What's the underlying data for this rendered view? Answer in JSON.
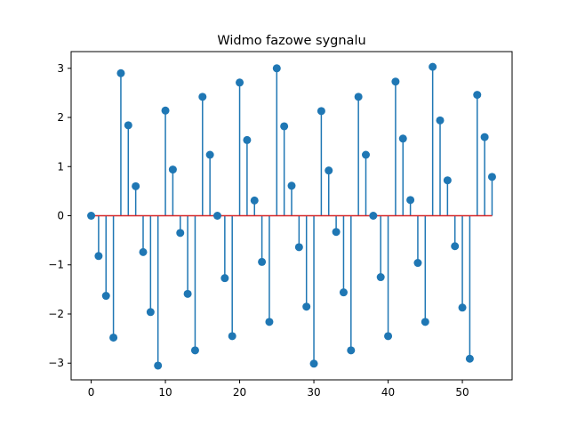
{
  "chart_data": {
    "type": "stem",
    "title": "Widmo fazowe sygnalu",
    "xlabel": "",
    "ylabel": "",
    "xlim": [
      -2.7,
      56.7
    ],
    "ylim": [
      -3.34,
      3.34
    ],
    "x_ticks": [
      0,
      10,
      20,
      30,
      40,
      50
    ],
    "y_ticks": [
      -3,
      -2,
      -1,
      0,
      1,
      2,
      3
    ],
    "x_tick_labels": [
      "0",
      "10",
      "20",
      "30",
      "40",
      "50"
    ],
    "y_tick_labels": [
      "−3",
      "−2",
      "−1",
      "0",
      "1",
      "2",
      "3"
    ],
    "grid": false,
    "colors": {
      "stem": "#1f77b4",
      "marker": "#1f77b4",
      "baseline": "#d62728"
    },
    "baseline": {
      "value": 0,
      "x_range": [
        0,
        54
      ]
    },
    "series": [
      {
        "x": [
          0,
          1,
          2,
          3,
          4,
          5,
          6,
          7,
          8,
          9,
          10,
          11,
          12,
          13,
          14,
          15,
          16,
          17,
          18,
          19,
          20,
          21,
          22,
          23,
          24,
          25,
          26,
          27,
          28,
          29,
          30,
          31,
          32,
          33,
          34,
          35,
          36,
          37,
          38,
          39,
          40,
          41,
          42,
          43,
          44,
          45,
          46,
          47,
          48,
          49,
          50,
          51,
          52,
          53,
          54
        ],
        "y": [
          0.0,
          -0.82,
          -1.63,
          -2.48,
          2.9,
          1.84,
          0.6,
          -0.74,
          -1.96,
          -3.05,
          2.14,
          0.94,
          -0.35,
          -1.59,
          -2.74,
          2.42,
          1.24,
          0.0,
          -1.27,
          -2.45,
          2.71,
          1.54,
          0.31,
          -0.94,
          -2.16,
          3.0,
          1.82,
          0.61,
          -0.64,
          -1.85,
          -3.01,
          2.13,
          0.92,
          -0.33,
          -1.56,
          -2.74,
          2.42,
          1.24,
          0.0,
          -1.25,
          -2.45,
          2.73,
          1.57,
          0.32,
          -0.96,
          -2.16,
          3.03,
          1.94,
          0.72,
          -0.62,
          -1.87,
          -2.91,
          2.46,
          1.6,
          0.79
        ]
      }
    ]
  }
}
